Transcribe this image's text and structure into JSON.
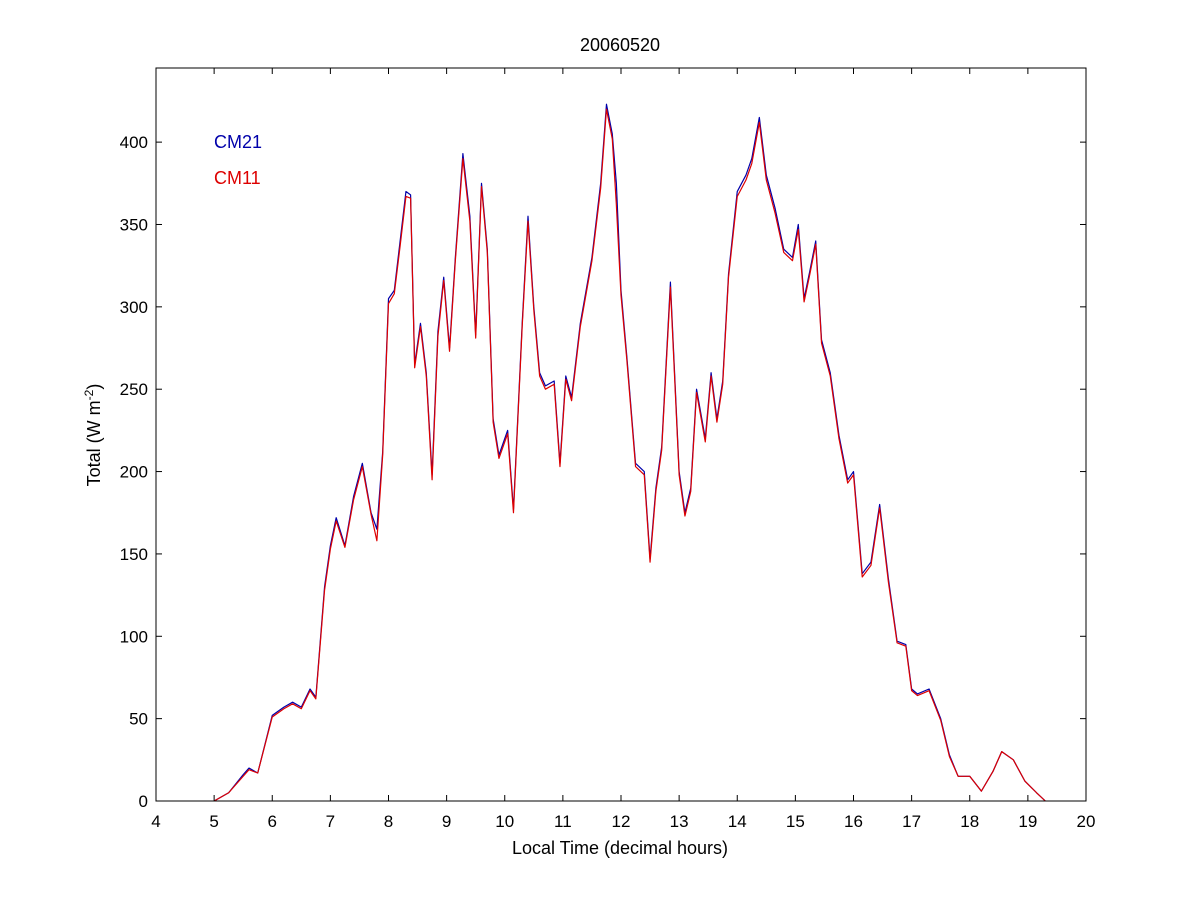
{
  "chart_data": {
    "type": "line",
    "title": "20060520",
    "xlabel": "Local Time (decimal hours)",
    "ylabel_main": "Total (W m",
    "ylabel_sup": "-2",
    "ylabel_close": ")",
    "xlim": [
      4,
      20
    ],
    "ylim": [
      0,
      445
    ],
    "xticks": [
      4,
      5,
      6,
      7,
      8,
      9,
      10,
      11,
      12,
      13,
      14,
      15,
      16,
      17,
      18,
      19,
      20
    ],
    "yticks": [
      0,
      50,
      100,
      150,
      200,
      250,
      300,
      350,
      400
    ],
    "grid": false,
    "legend_position": "top-left",
    "series": [
      {
        "name": "CM21",
        "color": "#0000aa",
        "x": [
          5.0,
          5.25,
          5.5,
          5.6,
          5.75,
          6.0,
          6.2,
          6.35,
          6.5,
          6.65,
          6.75,
          6.9,
          7.0,
          7.1,
          7.25,
          7.4,
          7.55,
          7.7,
          7.8,
          7.9,
          8.0,
          8.1,
          8.2,
          8.3,
          8.38,
          8.45,
          8.55,
          8.65,
          8.75,
          8.85,
          8.95,
          9.05,
          9.15,
          9.28,
          9.4,
          9.5,
          9.6,
          9.7,
          9.8,
          9.9,
          10.05,
          10.15,
          10.3,
          10.4,
          10.5,
          10.6,
          10.7,
          10.85,
          10.95,
          11.05,
          11.15,
          11.3,
          11.5,
          11.65,
          11.75,
          11.85,
          11.92,
          12.0,
          12.1,
          12.25,
          12.4,
          12.5,
          12.6,
          12.7,
          12.85,
          13.0,
          13.1,
          13.2,
          13.3,
          13.45,
          13.55,
          13.65,
          13.75,
          13.85,
          14.0,
          14.15,
          14.25,
          14.38,
          14.5,
          14.65,
          14.8,
          14.95,
          15.05,
          15.15,
          15.25,
          15.35,
          15.45,
          15.6,
          15.75,
          15.9,
          16.0,
          16.15,
          16.3,
          16.45,
          16.6,
          16.75,
          16.9,
          17.0,
          17.1,
          17.3,
          17.5,
          17.65,
          17.8,
          18.0,
          18.2,
          18.4,
          18.55,
          18.75,
          18.95,
          19.15,
          19.3
        ],
        "y": [
          0,
          5,
          16,
          20,
          17,
          52,
          57,
          60,
          57,
          68,
          63,
          130,
          155,
          172,
          155,
          185,
          205,
          175,
          165,
          212,
          305,
          310,
          340,
          370,
          368,
          265,
          290,
          260,
          198,
          285,
          318,
          275,
          330,
          393,
          355,
          283,
          375,
          335,
          232,
          210,
          225,
          177,
          290,
          355,
          300,
          260,
          252,
          255,
          205,
          258,
          245,
          290,
          330,
          375,
          423,
          405,
          375,
          310,
          270,
          205,
          200,
          147,
          190,
          215,
          315,
          200,
          175,
          190,
          250,
          220,
          260,
          232,
          255,
          320,
          370,
          380,
          390,
          415,
          380,
          360,
          335,
          330,
          350,
          305,
          322,
          340,
          280,
          260,
          222,
          195,
          200,
          138,
          145,
          180,
          135,
          97,
          95,
          68,
          65,
          68,
          50,
          28,
          15,
          15,
          6,
          18,
          30,
          25,
          12,
          5,
          0
        ]
      },
      {
        "name": "CM11",
        "color": "#dd0000",
        "x": [
          5.0,
          5.25,
          5.5,
          5.6,
          5.75,
          6.0,
          6.2,
          6.35,
          6.5,
          6.65,
          6.75,
          6.9,
          7.0,
          7.1,
          7.25,
          7.4,
          7.55,
          7.7,
          7.8,
          7.9,
          8.0,
          8.1,
          8.2,
          8.3,
          8.38,
          8.45,
          8.55,
          8.65,
          8.75,
          8.85,
          8.95,
          9.05,
          9.15,
          9.28,
          9.4,
          9.5,
          9.6,
          9.7,
          9.8,
          9.9,
          10.05,
          10.15,
          10.3,
          10.4,
          10.5,
          10.6,
          10.7,
          10.85,
          10.95,
          11.05,
          11.15,
          11.3,
          11.5,
          11.65,
          11.75,
          11.85,
          11.92,
          12.0,
          12.1,
          12.25,
          12.4,
          12.5,
          12.6,
          12.7,
          12.85,
          13.0,
          13.1,
          13.2,
          13.3,
          13.45,
          13.55,
          13.65,
          13.75,
          13.85,
          14.0,
          14.15,
          14.25,
          14.38,
          14.5,
          14.65,
          14.8,
          14.95,
          15.05,
          15.15,
          15.25,
          15.35,
          15.45,
          15.6,
          15.75,
          15.9,
          16.0,
          16.15,
          16.3,
          16.45,
          16.6,
          16.75,
          16.9,
          17.0,
          17.1,
          17.3,
          17.5,
          17.65,
          17.8,
          18.0,
          18.2,
          18.4,
          18.55,
          18.75,
          18.95,
          19.15,
          19.3
        ],
        "y": [
          0,
          5,
          15,
          19,
          17,
          51,
          56,
          59,
          56,
          67,
          62,
          128,
          153,
          170,
          154,
          183,
          203,
          174,
          158,
          210,
          302,
          308,
          337,
          367,
          366,
          263,
          288,
          258,
          195,
          282,
          316,
          273,
          328,
          390,
          352,
          281,
          373,
          333,
          230,
          208,
          223,
          175,
          288,
          352,
          298,
          258,
          250,
          253,
          203,
          256,
          243,
          288,
          328,
          372,
          420,
          402,
          362,
          307,
          268,
          203,
          198,
          145,
          188,
          213,
          312,
          198,
          173,
          188,
          248,
          218,
          258,
          230,
          253,
          318,
          367,
          377,
          387,
          412,
          377,
          357,
          333,
          328,
          347,
          303,
          320,
          338,
          278,
          258,
          220,
          193,
          198,
          136,
          143,
          178,
          133,
          96,
          94,
          67,
          64,
          67,
          49,
          27,
          15,
          15,
          6,
          18,
          30,
          25,
          12,
          5,
          0
        ]
      }
    ]
  }
}
